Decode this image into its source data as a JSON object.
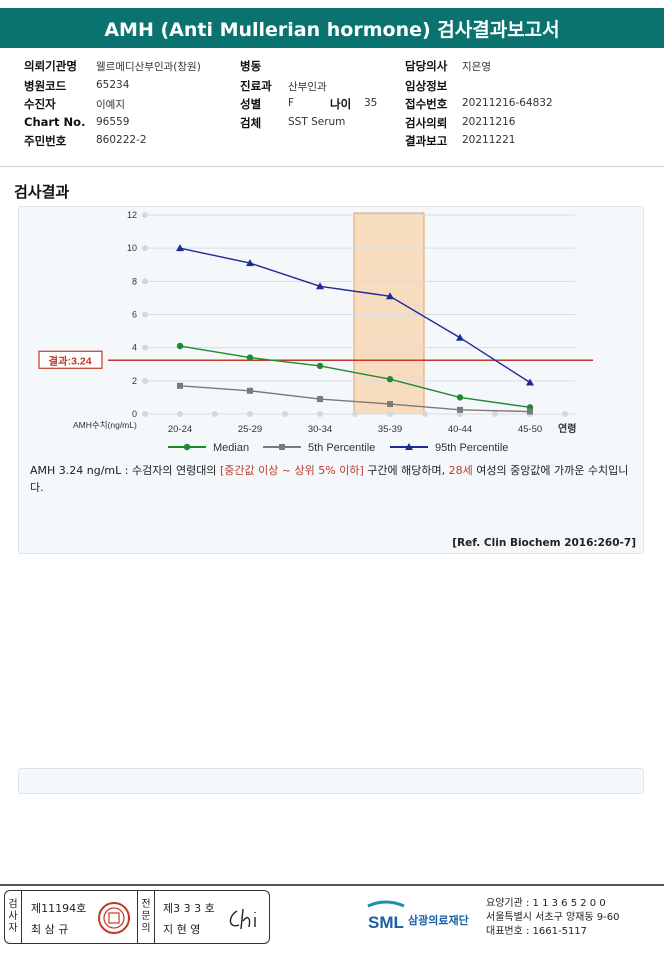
{
  "report": {
    "title": "AMH (Anti Mullerian hormone) 검사결과보고서"
  },
  "info": {
    "institution_label": "의뢰기관명",
    "institution": "웰르메디산부인과(창원)",
    "ward_label": "병동",
    "ward": "",
    "doctor_label": "담당의사",
    "doctor": "지은영",
    "hospital_code_label": "병원코드",
    "hospital_code": "65234",
    "department_label": "진료과",
    "department": "산부인과",
    "clinical_info_label": "임상정보",
    "clinical_info": "",
    "patient_label": "수진자",
    "patient": "이예지",
    "sex_label": "성별",
    "sex": "F",
    "age_label": "나이",
    "age": "35",
    "receipt_no_label": "접수번호",
    "receipt_no": "20211216-64832",
    "chart_no_label": "Chart No.",
    "chart_no": "96559",
    "specimen_label": "검체",
    "specimen": "SST Serum",
    "request_date_label": "검사의뢰",
    "request_date": "20211216",
    "resident_no_label": "주민번호",
    "resident_no": "860222-2",
    "report_date_label": "결과보고",
    "report_date": "20211221"
  },
  "section_title": "검사결과",
  "chart_data": {
    "type": "line",
    "categories": [
      "20-24",
      "25-29",
      "30-34",
      "35-39",
      "40-44",
      "45-50"
    ],
    "xlabel": "연령",
    "ylabel": "AMH수치(ng/mL)",
    "ylim": [
      0,
      12
    ],
    "yticks": [
      0,
      2,
      4,
      6,
      8,
      10,
      12
    ],
    "grid": true,
    "legend": "bottom",
    "highlight_category": "35-39",
    "highlight_color": "#f8dcc0",
    "result_line": {
      "value": 3.24,
      "label": "결과:3.24",
      "color": "#c0392b"
    },
    "series": [
      {
        "name": "Median",
        "values": [
          4.1,
          3.4,
          2.9,
          2.1,
          1.0,
          0.4
        ],
        "color": "#1e8a2e",
        "marker": "circle"
      },
      {
        "name": "5th Percentile",
        "values": [
          1.7,
          1.4,
          0.9,
          0.6,
          0.25,
          0.15
        ],
        "color": "#7a7a7a",
        "marker": "square"
      },
      {
        "name": "95th Percentile",
        "values": [
          10.0,
          9.1,
          7.7,
          7.1,
          4.6,
          1.9
        ],
        "color": "#1f2a99",
        "marker": "triangle"
      }
    ]
  },
  "interpretation": {
    "part1": "AMH  3.24 ng/mL : 수검자의 연령대의 ",
    "part2": "[중간값 이상 ~ 상위 5% 이하]",
    "part3": "  구간에 해당하며, ",
    "part4": "28세",
    "part5": " 여성의 중앙값에 가까운 수치입니다."
  },
  "reference": "[Ref. Clin Biochem 2016:260-7]",
  "footer": {
    "col1": [
      "검",
      "사",
      "자"
    ],
    "inspector_no": "제11194호",
    "inspector_name": "최 삼 규",
    "col2": [
      "전",
      "문",
      "의"
    ],
    "specialist_no": "제3 3 3 호",
    "specialist_name": "지 현 영",
    "org_logo_text": "SML",
    "org_name": "삼광의료재단",
    "contact_line1": "요양기관 : 1 1 3 6 5 2 0 0",
    "contact_line2": "서울특별시 서초구 양재동 9-60",
    "contact_line3": "대표번호 : 1661-5117"
  }
}
